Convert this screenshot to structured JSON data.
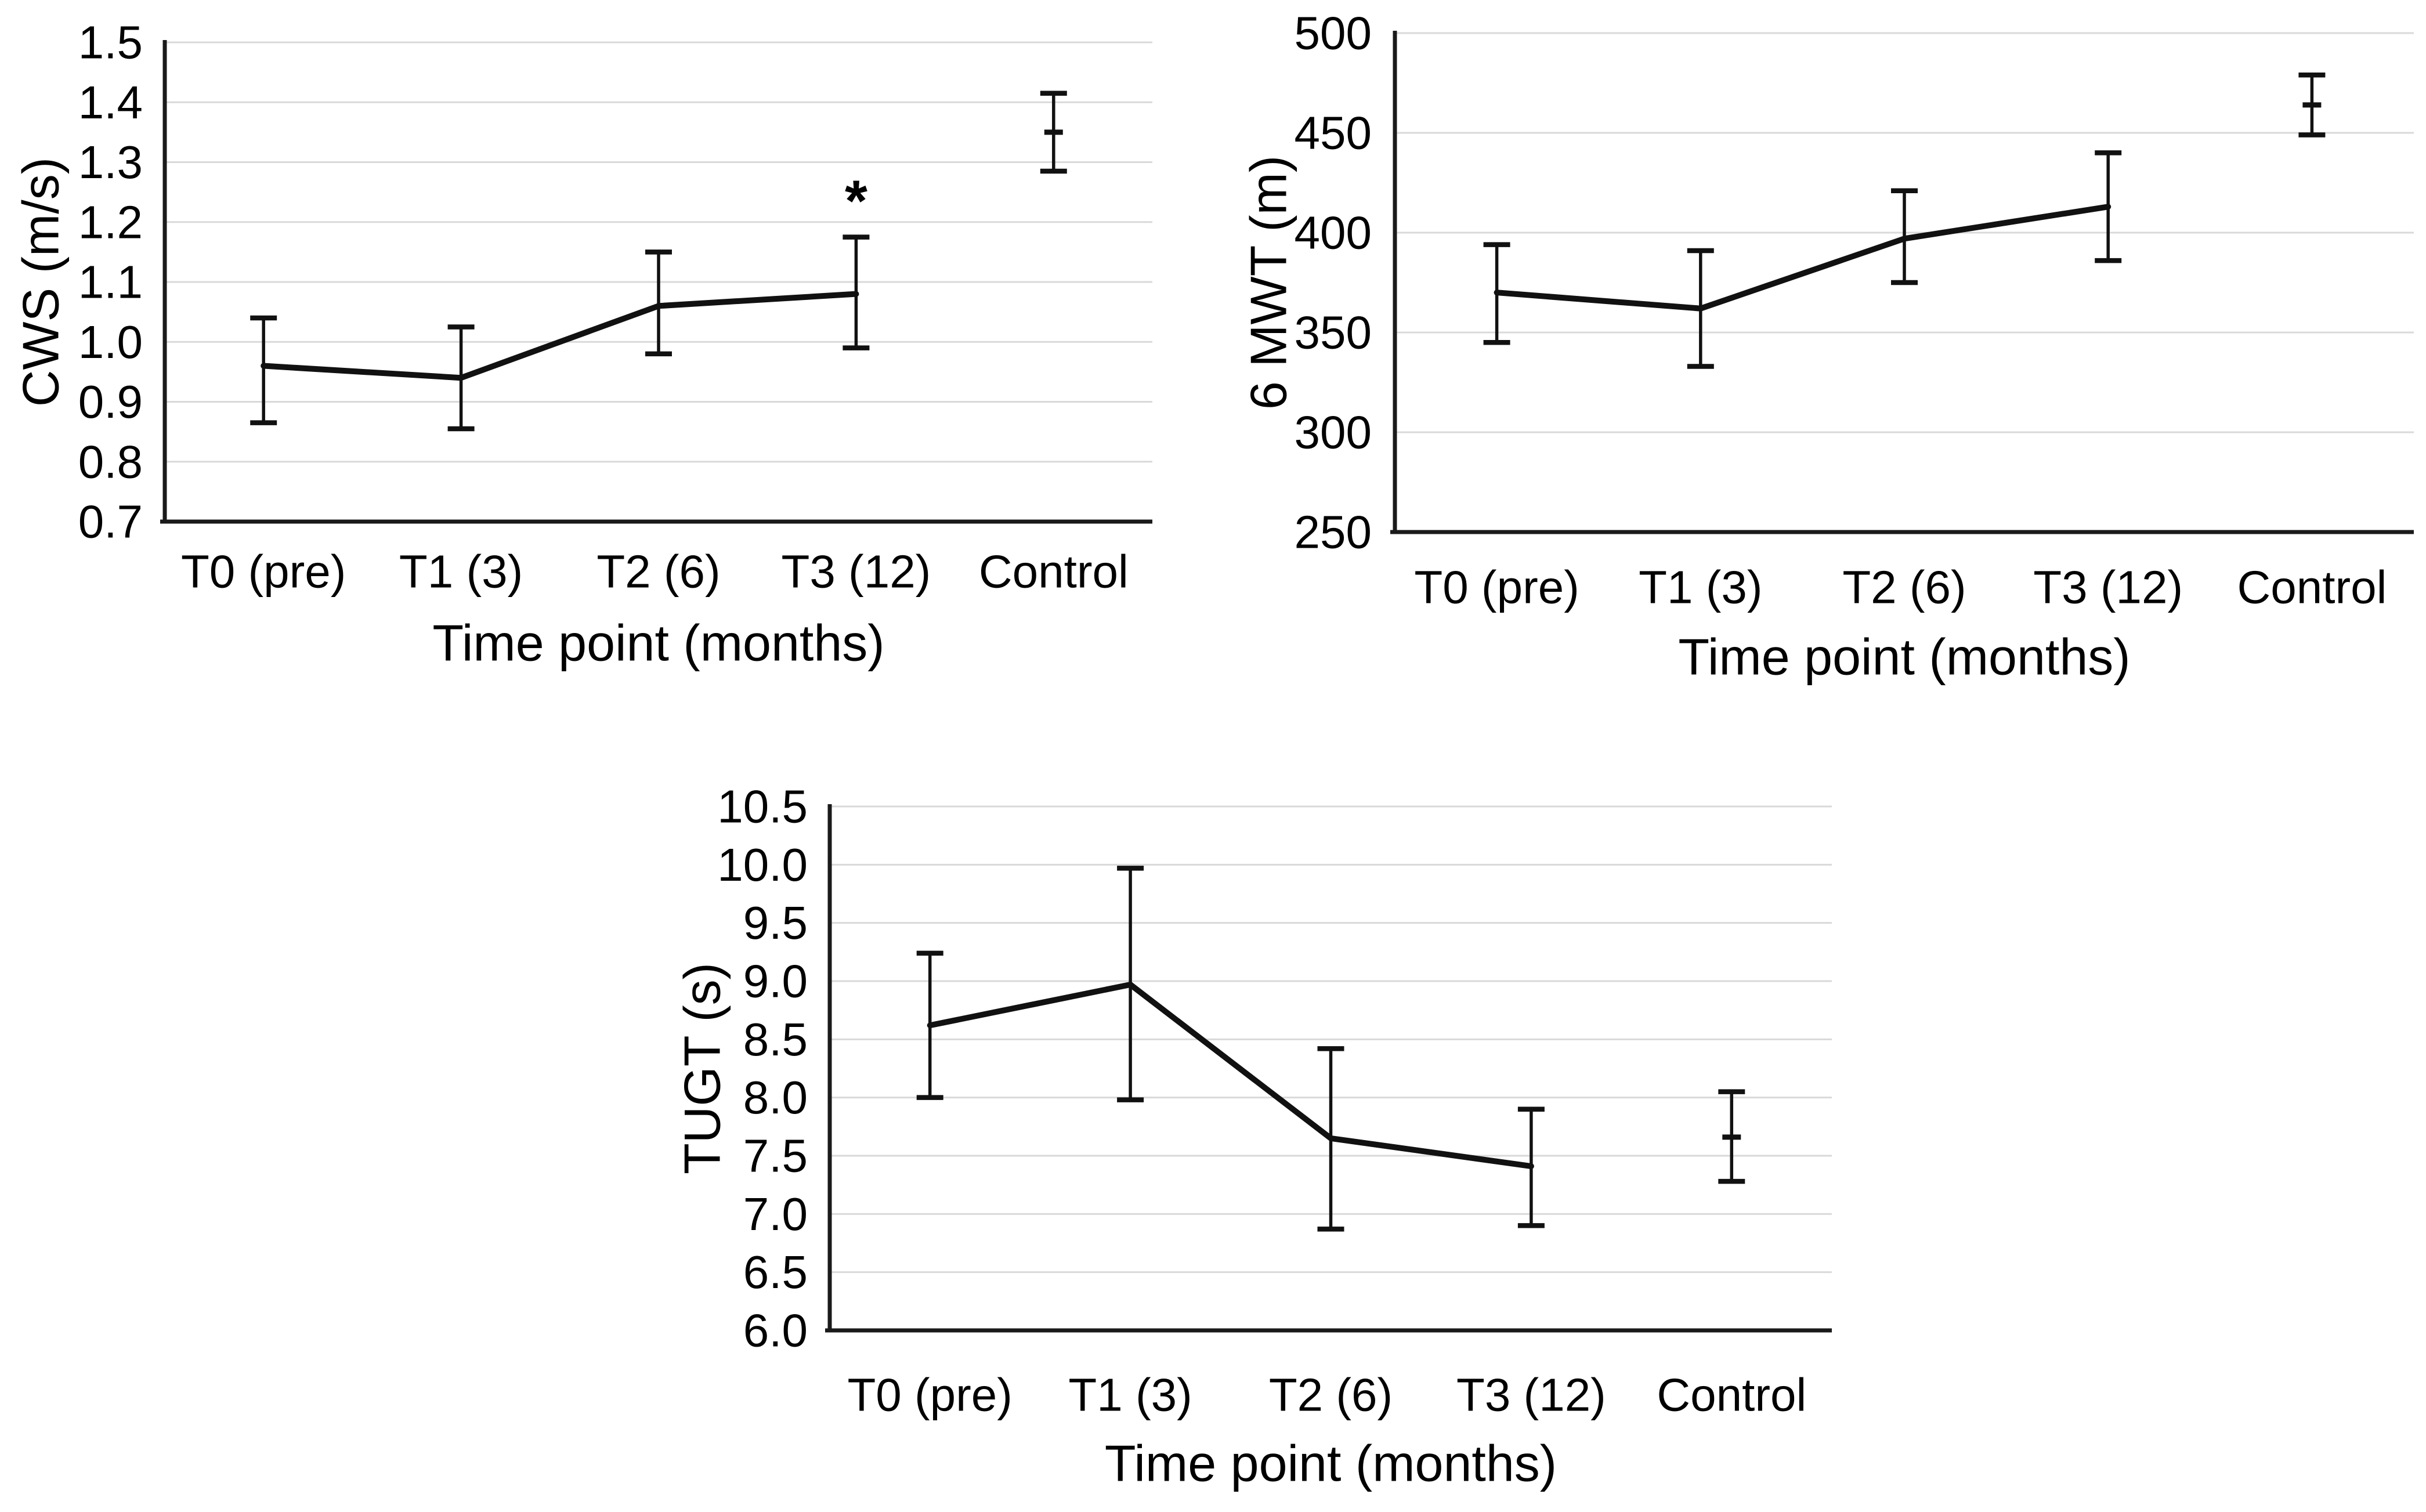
{
  "figure": {
    "background": "#ffffff",
    "text_color": "#000000",
    "grid_color": "#d9d9d9",
    "axis_color": "#1a1a1a",
    "series_color": "#111111"
  },
  "chart_data": [
    {
      "id": "cws",
      "type": "line",
      "title": "",
      "ylabel": "CWS (m/s)",
      "xlabel": "Time point (months)",
      "categories": [
        "T0 (pre)",
        "T1 (3)",
        "T2 (6)",
        "T3 (12)",
        "Control"
      ],
      "ylim": [
        0.7,
        1.5
      ],
      "ytick_step": 0.1,
      "yticklabels": [
        "1.5",
        "1.4",
        "1.3",
        "1.2",
        "1.1",
        "1.0",
        "0.9",
        "0.8",
        "0.7"
      ],
      "grid": true,
      "legend": "none",
      "marker": "none",
      "error_bars": true,
      "line_connects_first_n": 4,
      "series": [
        {
          "name": "CWS",
          "values": [
            0.96,
            0.94,
            1.06,
            1.08,
            1.35
          ],
          "err_low": [
            0.865,
            0.855,
            0.98,
            0.99,
            1.285
          ],
          "err_high": [
            1.04,
            1.025,
            1.15,
            1.175,
            1.415
          ]
        }
      ],
      "annotations": [
        {
          "text": "*",
          "category_index": 3,
          "value": 1.235
        }
      ]
    },
    {
      "id": "6mwt",
      "type": "line",
      "title": "",
      "ylabel": "6 MWT (m)",
      "xlabel": "Time point (months)",
      "categories": [
        "T0 (pre)",
        "T1 (3)",
        "T2 (6)",
        "T3 (12)",
        "Control"
      ],
      "ylim": [
        250,
        500
      ],
      "ytick_step": 50,
      "yticklabels": [
        "500",
        "450",
        "400",
        "350",
        "300",
        "250"
      ],
      "grid": true,
      "legend": "none",
      "marker": "none",
      "error_bars": true,
      "line_connects_first_n": 4,
      "series": [
        {
          "name": "6MWT",
          "values": [
            370,
            362,
            397,
            413,
            464
          ],
          "err_low": [
            345,
            333,
            375,
            386,
            449
          ],
          "err_high": [
            394,
            391,
            421,
            440,
            479
          ]
        }
      ],
      "annotations": []
    },
    {
      "id": "tugt",
      "type": "line",
      "title": "",
      "ylabel": "TUGT (s)",
      "xlabel": "Time point (months)",
      "categories": [
        "T0 (pre)",
        "T1 (3)",
        "T2 (6)",
        "T3 (12)",
        "Control"
      ],
      "ylim": [
        6.0,
        10.5
      ],
      "ytick_step": 0.5,
      "yticklabels": [
        "10.5",
        "10.0",
        "9.5",
        "9.0",
        "8.5",
        "8.0",
        "7.5",
        "7.0",
        "6.5",
        "6.0"
      ],
      "grid": true,
      "legend": "none",
      "marker": "none",
      "error_bars": true,
      "line_connects_first_n": 4,
      "series": [
        {
          "name": "TUGT",
          "values": [
            8.62,
            8.97,
            7.65,
            7.41,
            7.66
          ],
          "err_low": [
            8.0,
            7.98,
            6.87,
            6.9,
            7.28
          ],
          "err_high": [
            9.24,
            9.97,
            8.42,
            7.9,
            8.05
          ]
        }
      ],
      "annotations": []
    }
  ]
}
